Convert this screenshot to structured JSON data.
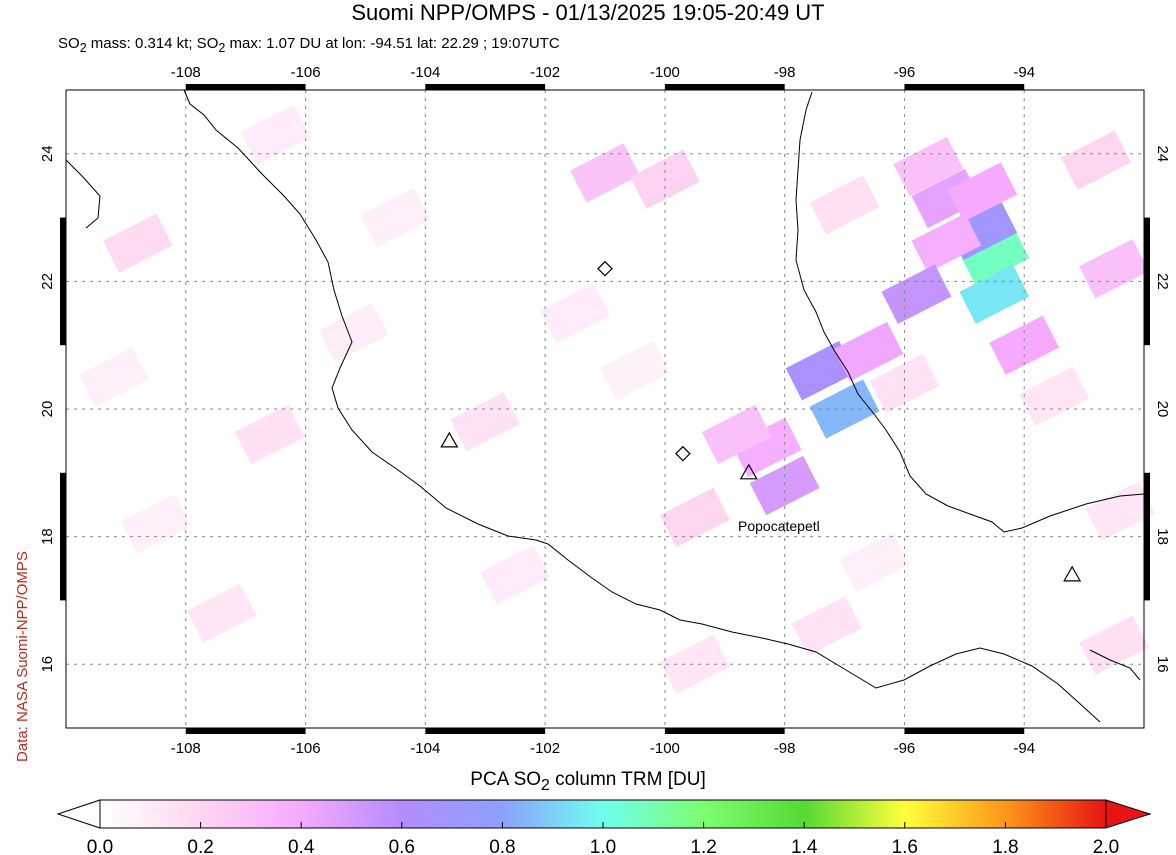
{
  "header": {
    "title": "Suomi NPP/OMPS - 01/13/2025 19:05-20:49 UT",
    "subtitle_parts": [
      "SO",
      "2",
      " mass: 0.314 kt; SO",
      "2",
      " max: 1.07 DU at lon: -94.51 lat: 22.29 ; 19:07UTC"
    ]
  },
  "credit": "Data: NASA Suomi-NPP/OMPS",
  "map": {
    "lon_range": [
      -110,
      -92
    ],
    "lat_range": [
      15,
      25
    ],
    "lon_ticks": [
      -108,
      -106,
      -104,
      -102,
      -100,
      -98,
      -96,
      -94
    ],
    "lat_ticks": [
      16,
      18,
      20,
      22,
      24
    ],
    "volcano_label": "Popocatepetl",
    "markers": [
      {
        "kind": "diamond",
        "lon": -101.0,
        "lat": 22.2
      },
      {
        "kind": "diamond",
        "lon": -99.7,
        "lat": 19.3
      },
      {
        "kind": "triangle",
        "lon": -103.6,
        "lat": 19.5
      },
      {
        "kind": "triangle",
        "lon": -98.6,
        "lat": 19.0
      },
      {
        "kind": "triangle",
        "lon": -93.2,
        "lat": 17.4
      }
    ],
    "pixels": [
      {
        "lon": -94.5,
        "lat": 22.4,
        "du": 1.07
      },
      {
        "lon": -94.5,
        "lat": 21.8,
        "du": 0.95
      },
      {
        "lon": -94.7,
        "lat": 22.8,
        "du": 0.7
      },
      {
        "lon": -95.3,
        "lat": 23.3,
        "du": 0.45
      },
      {
        "lon": -94.7,
        "lat": 23.4,
        "du": 0.4
      },
      {
        "lon": -95.3,
        "lat": 22.6,
        "du": 0.38
      },
      {
        "lon": -95.8,
        "lat": 21.8,
        "du": 0.55
      },
      {
        "lon": -94.0,
        "lat": 21.0,
        "du": 0.4
      },
      {
        "lon": -97.4,
        "lat": 20.6,
        "du": 0.65
      },
      {
        "lon": -97.0,
        "lat": 20.0,
        "du": 0.85
      },
      {
        "lon": -96.6,
        "lat": 20.9,
        "du": 0.42
      },
      {
        "lon": -98.3,
        "lat": 19.4,
        "du": 0.38
      },
      {
        "lon": -98.0,
        "lat": 18.8,
        "du": 0.5
      },
      {
        "lon": -98.8,
        "lat": 19.6,
        "du": 0.3
      },
      {
        "lon": -99.5,
        "lat": 18.3,
        "du": 0.2
      },
      {
        "lon": -101.0,
        "lat": 23.7,
        "du": 0.28
      },
      {
        "lon": -100.0,
        "lat": 23.6,
        "du": 0.22
      },
      {
        "lon": -95.6,
        "lat": 23.8,
        "du": 0.3
      },
      {
        "lon": -92.5,
        "lat": 22.2,
        "du": 0.3
      },
      {
        "lon": -92.8,
        "lat": 23.9,
        "du": 0.2
      },
      {
        "lon": -97.0,
        "lat": 23.2,
        "du": 0.15
      },
      {
        "lon": -96.0,
        "lat": 20.4,
        "du": 0.14
      },
      {
        "lon": -93.5,
        "lat": 20.2,
        "du": 0.12
      },
      {
        "lon": -106.5,
        "lat": 24.3,
        "du": 0.1
      },
      {
        "lon": -108.8,
        "lat": 22.6,
        "du": 0.18
      },
      {
        "lon": -104.5,
        "lat": 23.0,
        "du": 0.08
      },
      {
        "lon": -103.0,
        "lat": 19.8,
        "du": 0.14
      },
      {
        "lon": -106.6,
        "lat": 19.6,
        "du": 0.15
      },
      {
        "lon": -107.4,
        "lat": 16.8,
        "du": 0.12
      },
      {
        "lon": -97.3,
        "lat": 16.6,
        "du": 0.14
      },
      {
        "lon": -99.5,
        "lat": 16.0,
        "du": 0.12
      },
      {
        "lon": -102.5,
        "lat": 17.4,
        "du": 0.1
      },
      {
        "lon": -109.2,
        "lat": 20.5,
        "du": 0.08
      },
      {
        "lon": -108.5,
        "lat": 18.2,
        "du": 0.08
      },
      {
        "lon": -92.5,
        "lat": 16.3,
        "du": 0.15
      },
      {
        "lon": -92.4,
        "lat": 18.4,
        "du": 0.12
      },
      {
        "lon": -101.5,
        "lat": 21.5,
        "du": 0.1
      },
      {
        "lon": -96.5,
        "lat": 17.6,
        "du": 0.08
      },
      {
        "lon": -105.2,
        "lat": 21.2,
        "du": 0.09
      },
      {
        "lon": -100.5,
        "lat": 20.6,
        "du": 0.07
      }
    ]
  },
  "colorbar": {
    "title_parts": [
      "PCA SO",
      "2",
      " column TRM [DU]"
    ],
    "ticks": [
      "0.0",
      "0.2",
      "0.4",
      "0.6",
      "0.8",
      "1.0",
      "1.2",
      "1.4",
      "1.6",
      "1.8",
      "2.0"
    ],
    "range": [
      0,
      2
    ],
    "colors": [
      "#ffffff",
      "#ffd6f2",
      "#f5aaff",
      "#b48cff",
      "#8ca0ff",
      "#6fffef",
      "#7dff6f",
      "#55d935",
      "#ffff3c",
      "#ff9619",
      "#e61414"
    ]
  }
}
